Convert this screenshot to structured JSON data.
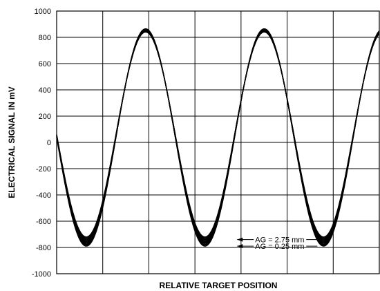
{
  "chart_data": {
    "type": "line",
    "title": "",
    "xlabel": "RELATIVE TARGET POSITION",
    "ylabel": "ELECTRICAL SIGNAL IN mV",
    "ylim": [
      -1000,
      1000
    ],
    "yticks": [
      1000,
      800,
      600,
      400,
      200,
      0,
      -200,
      -400,
      -600,
      -800,
      -1000
    ],
    "xlim": [
      0,
      1
    ],
    "x_grid_divisions": 7,
    "grid": true,
    "annotations": [
      {
        "text": "AG = 2.75 mm",
        "x": 0.5423,
        "y": -740
      },
      {
        "text": "AG = 0.25 mm",
        "x": 0.5423,
        "y": -790
      }
    ],
    "series_family": {
      "count": 11,
      "waveform": "sine",
      "periods": 2.72,
      "phase_start": 0.25,
      "max_range": [
        840,
        865
      ],
      "min_range": [
        -720,
        -790
      ]
    }
  }
}
